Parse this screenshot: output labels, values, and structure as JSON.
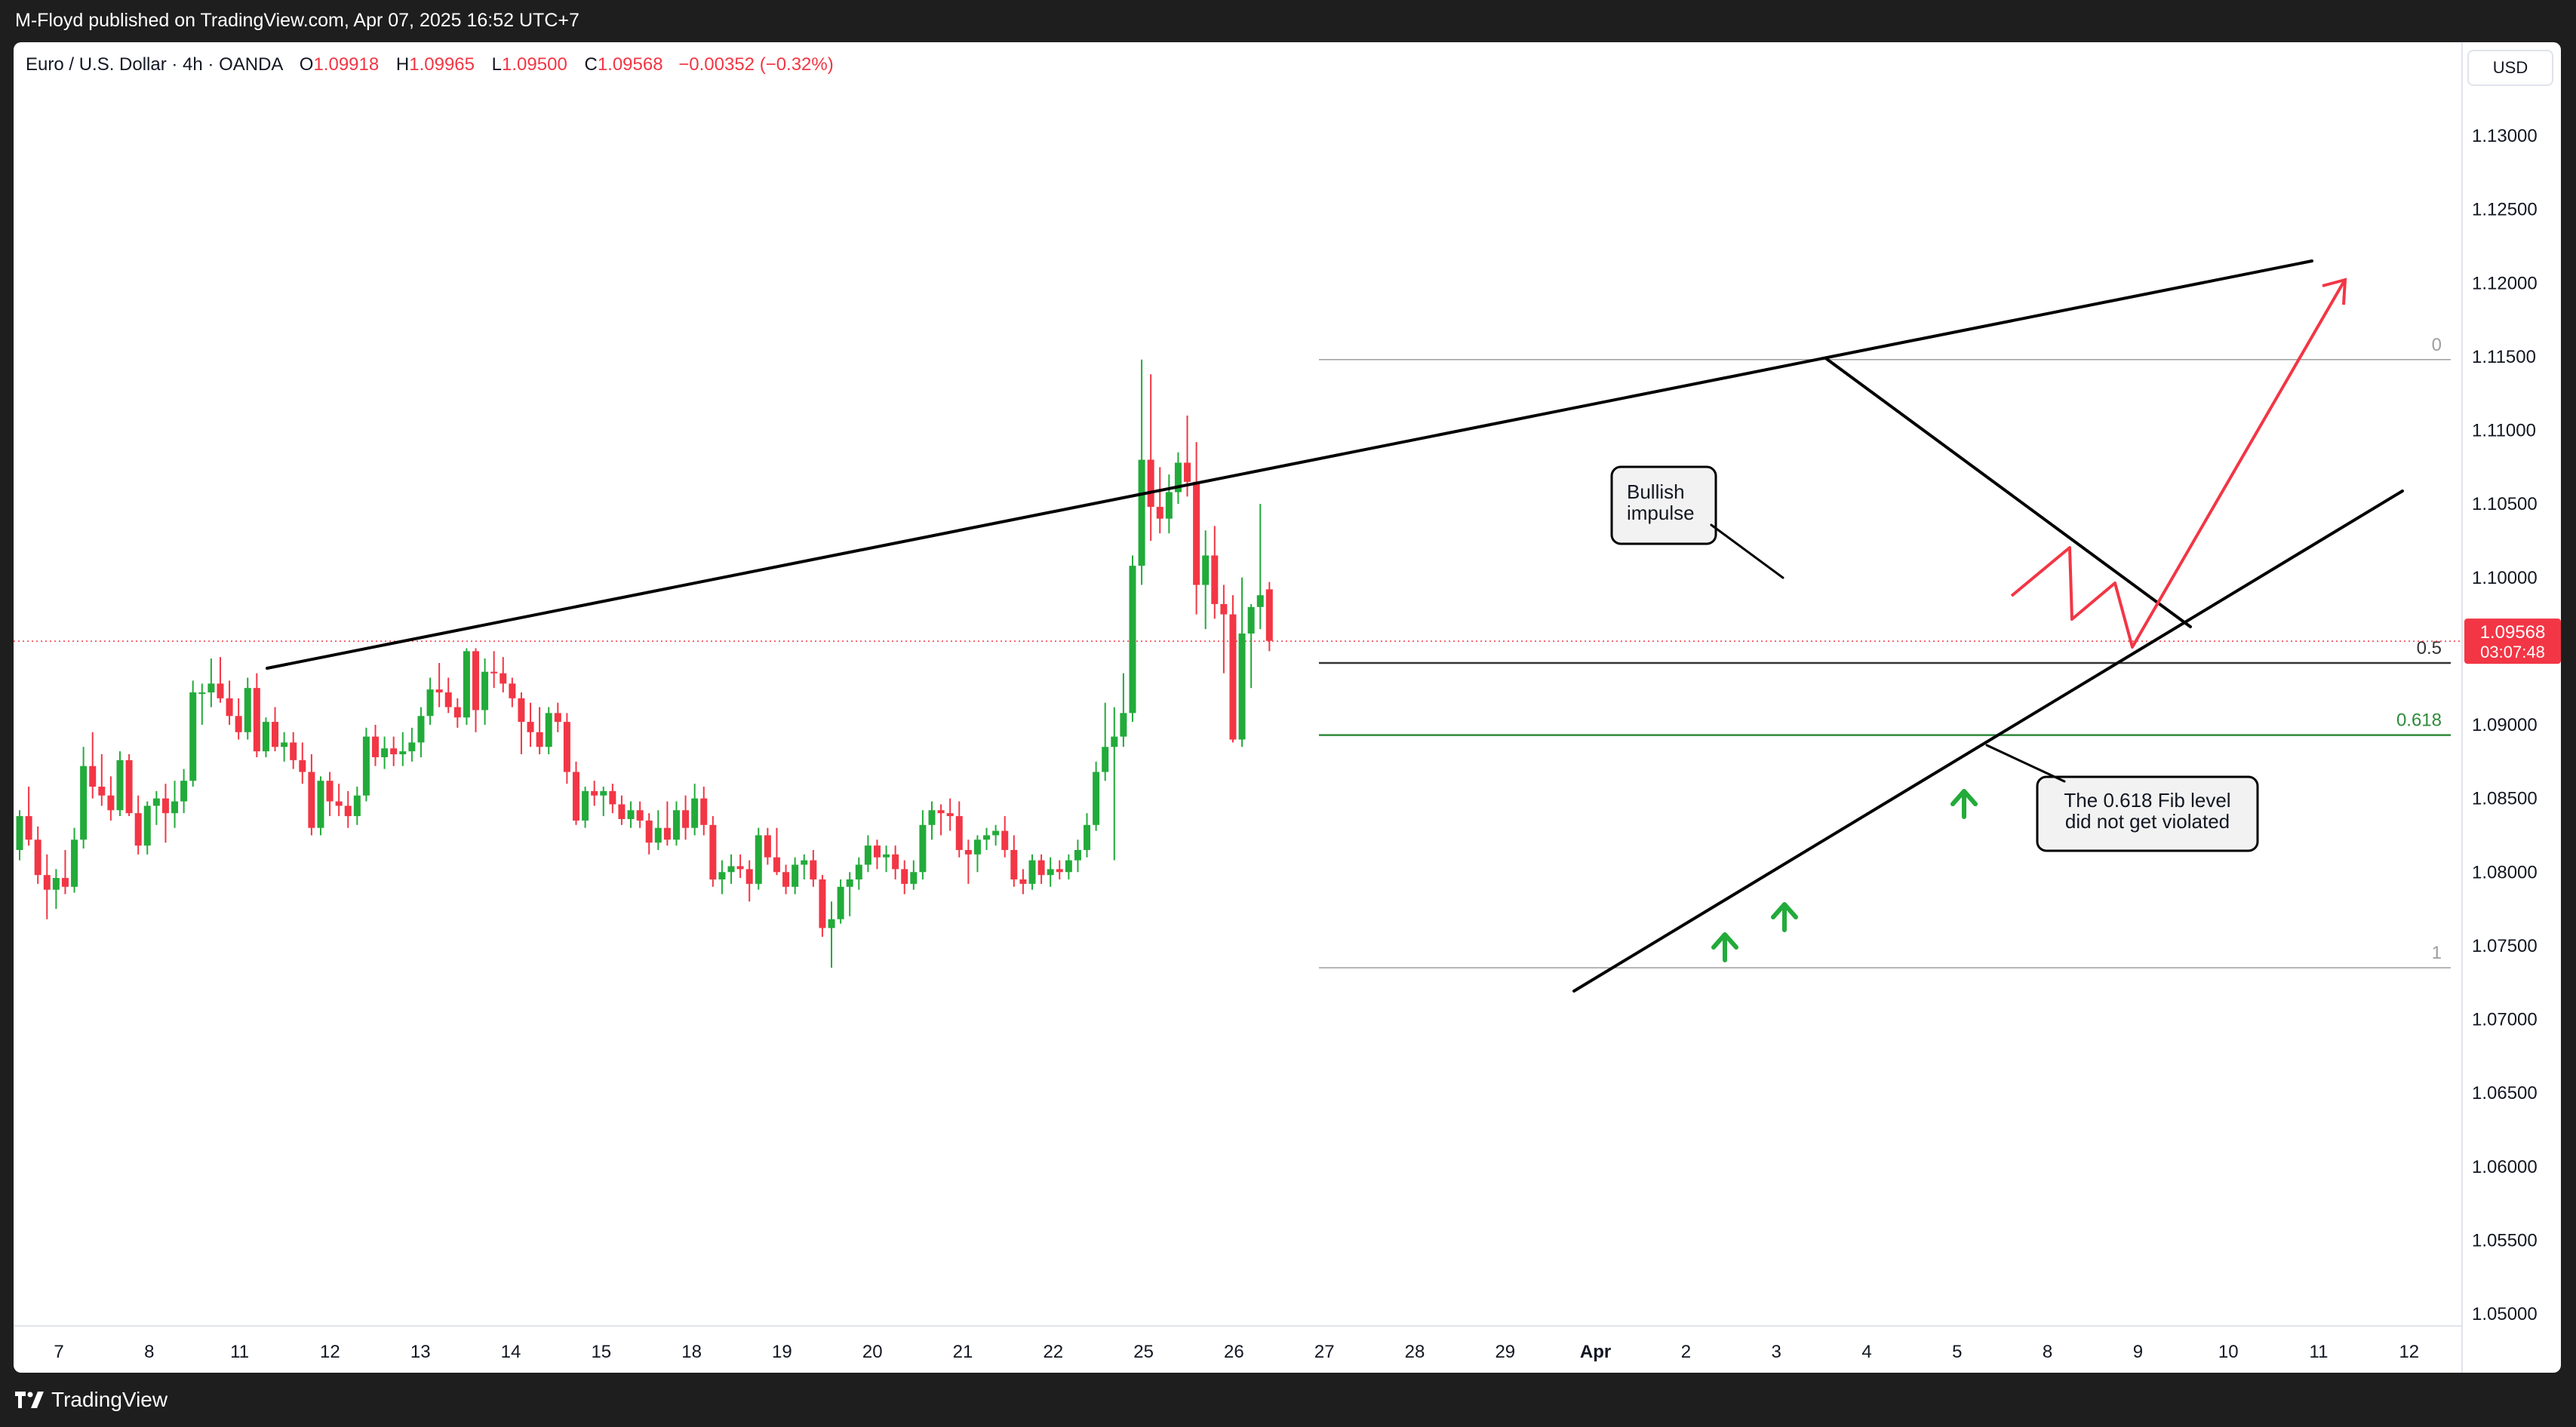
{
  "header": {
    "publisher_line": "M-Floyd published on TradingView.com, Apr 07, 2025 16:52 UTC+7"
  },
  "legend": {
    "symbol": "Euro / U.S. Dollar · 4h · OANDA",
    "open_label": "O",
    "open": "1.09918",
    "high_label": "H",
    "high": "1.09965",
    "low_label": "L",
    "low": "1.09500",
    "close_label": "C",
    "close": "1.09568",
    "change": "−0.00352 (−0.32%)"
  },
  "currency": "USD",
  "price_tag": {
    "price": "1.09568",
    "countdown": "03:07:48"
  },
  "footer": {
    "brand": "TradingView",
    "logo_icon": "tradingview-logo-icon"
  },
  "colors": {
    "up": "#22ab3a",
    "down": "#f23645",
    "fib_mid": "#333333",
    "fib_618": "#2e8b3a",
    "fib_edge": "#9e9e9e",
    "annot_arrow": "#22ab3a",
    "forecast": "#f23645"
  },
  "chart_data": {
    "type": "candlestick",
    "symbol": "EURUSD",
    "timeframe": "4h",
    "ylim": [
      1.046,
      1.135
    ],
    "y_ticks": [
      "1.13000",
      "1.12500",
      "1.12000",
      "1.11500",
      "1.11000",
      "1.10500",
      "1.10000",
      "1.09500",
      "1.09000",
      "1.08500",
      "1.08000",
      "1.07500",
      "1.07000",
      "1.06500",
      "1.06000",
      "1.05500",
      "1.05000"
    ],
    "x_ticks": [
      "7",
      "8",
      "11",
      "12",
      "13",
      "14",
      "15",
      "18",
      "19",
      "20",
      "21",
      "22",
      "25",
      "26",
      "27",
      "28",
      "29",
      "Apr",
      "2",
      "3",
      "4",
      "5",
      "8",
      "9",
      "10",
      "11",
      "12"
    ],
    "candles": [
      [
        1.0815,
        1.0842,
        1.0808,
        1.0838
      ],
      [
        1.0838,
        1.0858,
        1.0818,
        1.0822
      ],
      [
        1.0822,
        1.0831,
        1.0792,
        1.0798
      ],
      [
        1.0798,
        1.0812,
        1.0768,
        1.0788
      ],
      [
        1.0788,
        1.0802,
        1.0775,
        1.0796
      ],
      [
        1.0796,
        1.0815,
        1.0785,
        1.079
      ],
      [
        1.079,
        1.083,
        1.0786,
        1.0822
      ],
      [
        1.0822,
        1.0885,
        1.0816,
        1.0872
      ],
      [
        1.0872,
        1.0895,
        1.085,
        1.0858
      ],
      [
        1.0858,
        1.088,
        1.0845,
        1.0852
      ],
      [
        1.0852,
        1.0865,
        1.0835,
        1.0842
      ],
      [
        1.0842,
        1.0882,
        1.0838,
        1.0876
      ],
      [
        1.0876,
        1.088,
        1.0838,
        1.084
      ],
      [
        1.084,
        1.0852,
        1.0812,
        1.0818
      ],
      [
        1.0818,
        1.0848,
        1.0812,
        1.0845
      ],
      [
        1.0845,
        1.0855,
        1.0832,
        1.085
      ],
      [
        1.085,
        1.086,
        1.082,
        1.084
      ],
      [
        1.084,
        1.0862,
        1.083,
        1.0848
      ],
      [
        1.0848,
        1.087,
        1.084,
        1.0862
      ],
      [
        1.0862,
        1.093,
        1.0858,
        1.0922
      ],
      [
        1.0922,
        1.0928,
        1.09,
        1.0922
      ],
      [
        1.0922,
        1.0945,
        1.0912,
        1.0928
      ],
      [
        1.0928,
        1.0946,
        1.0915,
        1.0918
      ],
      [
        1.0918,
        1.093,
        1.09,
        1.0906
      ],
      [
        1.0906,
        1.0918,
        1.089,
        1.0895
      ],
      [
        1.0895,
        1.0932,
        1.089,
        1.0925
      ],
      [
        1.0925,
        1.0935,
        1.0878,
        1.0882
      ],
      [
        1.0882,
        1.0905,
        1.0878,
        1.0902
      ],
      [
        1.0902,
        1.0912,
        1.0882,
        1.0885
      ],
      [
        1.0885,
        1.0895,
        1.0875,
        1.0888
      ],
      [
        1.0888,
        1.0895,
        1.087,
        1.0876
      ],
      [
        1.0876,
        1.0888,
        1.086,
        1.0868
      ],
      [
        1.0868,
        1.088,
        1.0825,
        1.083
      ],
      [
        1.083,
        1.0865,
        1.0825,
        1.0862
      ],
      [
        1.0862,
        1.0868,
        1.0838,
        1.0848
      ],
      [
        1.0848,
        1.086,
        1.0838,
        1.0845
      ],
      [
        1.0845,
        1.0855,
        1.083,
        1.0838
      ],
      [
        1.0838,
        1.0858,
        1.0832,
        1.0852
      ],
      [
        1.0852,
        1.0898,
        1.0848,
        1.0892
      ],
      [
        1.0892,
        1.09,
        1.0872,
        1.0878
      ],
      [
        1.0878,
        1.0892,
        1.087,
        1.0884
      ],
      [
        1.0884,
        1.0892,
        1.0872,
        1.088
      ],
      [
        1.088,
        1.0895,
        1.0872,
        1.0882
      ],
      [
        1.0882,
        1.0898,
        1.0875,
        1.0888
      ],
      [
        1.0888,
        1.0912,
        1.0878,
        1.0906
      ],
      [
        1.0906,
        1.0932,
        1.09,
        1.0924
      ],
      [
        1.0924,
        1.0942,
        1.0912,
        1.0922
      ],
      [
        1.0922,
        1.0932,
        1.0908,
        1.0912
      ],
      [
        1.0912,
        1.0918,
        1.0898,
        1.0905
      ],
      [
        1.0905,
        1.0952,
        1.09,
        1.095
      ],
      [
        1.095,
        1.0952,
        1.0895,
        1.091
      ],
      [
        1.091,
        1.0945,
        1.09,
        1.0936
      ],
      [
        1.0936,
        1.095,
        1.0925,
        1.0935
      ],
      [
        1.0935,
        1.0946,
        1.0922,
        1.0928
      ],
      [
        1.0928,
        1.0932,
        1.0912,
        1.0918
      ],
      [
        1.0918,
        1.0922,
        1.088,
        1.0902
      ],
      [
        1.0902,
        1.0915,
        1.0885,
        1.0895
      ],
      [
        1.0895,
        1.0912,
        1.088,
        1.0885
      ],
      [
        1.0885,
        1.0912,
        1.088,
        1.0908
      ],
      [
        1.0908,
        1.0915,
        1.0895,
        1.0902
      ],
      [
        1.0902,
        1.0908,
        1.086,
        1.0868
      ],
      [
        1.0868,
        1.0875,
        1.0832,
        1.0835
      ],
      [
        1.0835,
        1.0858,
        1.083,
        1.0855
      ],
      [
        1.0855,
        1.0862,
        1.0845,
        1.0852
      ],
      [
        1.0852,
        1.0858,
        1.0838,
        1.0855
      ],
      [
        1.0855,
        1.086,
        1.084,
        1.0846
      ],
      [
        1.0846,
        1.0852,
        1.0832,
        1.0836
      ],
      [
        1.0836,
        1.0848,
        1.083,
        1.0842
      ],
      [
        1.0842,
        1.0848,
        1.083,
        1.0835
      ],
      [
        1.0835,
        1.084,
        1.0812,
        1.082
      ],
      [
        1.082,
        1.0842,
        1.0815,
        1.083
      ],
      [
        1.083,
        1.0848,
        1.0818,
        1.0822
      ],
      [
        1.0822,
        1.0848,
        1.0818,
        1.0842
      ],
      [
        1.0842,
        1.0852,
        1.0822,
        1.083
      ],
      [
        1.083,
        1.086,
        1.0825,
        1.085
      ],
      [
        1.085,
        1.0858,
        1.0825,
        1.0832
      ],
      [
        1.0832,
        1.0838,
        1.079,
        1.0795
      ],
      [
        1.0795,
        1.0808,
        1.0785,
        1.08
      ],
      [
        1.08,
        1.0812,
        1.0792,
        1.0804
      ],
      [
        1.0804,
        1.0812,
        1.0796,
        1.0802
      ],
      [
        1.0802,
        1.0808,
        1.078,
        1.0792
      ],
      [
        1.0792,
        1.083,
        1.0788,
        1.0825
      ],
      [
        1.0825,
        1.083,
        1.0805,
        1.081
      ],
      [
        1.081,
        1.083,
        1.0798,
        1.08
      ],
      [
        1.08,
        1.0805,
        1.0785,
        1.079
      ],
      [
        1.079,
        1.081,
        1.0785,
        1.0805
      ],
      [
        1.0805,
        1.0812,
        1.0795,
        1.0808
      ],
      [
        1.0808,
        1.0815,
        1.079,
        1.0795
      ],
      [
        1.0795,
        1.0798,
        1.0756,
        1.0762
      ],
      [
        1.0762,
        1.078,
        1.0735,
        1.0768
      ],
      [
        1.0768,
        1.0795,
        1.0765,
        1.079
      ],
      [
        1.079,
        1.08,
        1.077,
        1.0795
      ],
      [
        1.0795,
        1.081,
        1.0788,
        1.0805
      ],
      [
        1.0805,
        1.0825,
        1.08,
        1.0818
      ],
      [
        1.0818,
        1.0822,
        1.0802,
        1.081
      ],
      [
        1.081,
        1.0818,
        1.08,
        1.0812
      ],
      [
        1.0812,
        1.0818,
        1.0795,
        1.0802
      ],
      [
        1.0802,
        1.0808,
        1.0785,
        1.0792
      ],
      [
        1.0792,
        1.0808,
        1.0788,
        1.08
      ],
      [
        1.08,
        1.0842,
        1.0795,
        1.0832
      ],
      [
        1.0832,
        1.0848,
        1.0822,
        1.0842
      ],
      [
        1.0842,
        1.0846,
        1.0825,
        1.084
      ],
      [
        1.084,
        1.085,
        1.0828,
        1.0838
      ],
      [
        1.0838,
        1.0848,
        1.081,
        1.0815
      ],
      [
        1.0815,
        1.0822,
        1.0792,
        1.0812
      ],
      [
        1.0812,
        1.0825,
        1.08,
        1.0822
      ],
      [
        1.0822,
        1.083,
        1.0815,
        1.0825
      ],
      [
        1.0825,
        1.0832,
        1.0818,
        1.0828
      ],
      [
        1.0828,
        1.0838,
        1.081,
        1.0815
      ],
      [
        1.0815,
        1.0825,
        1.079,
        1.0795
      ],
      [
        1.0795,
        1.0802,
        1.0785,
        1.0792
      ],
      [
        1.0792,
        1.0812,
        1.0788,
        1.0808
      ],
      [
        1.0808,
        1.0812,
        1.0792,
        1.0798
      ],
      [
        1.0798,
        1.081,
        1.079,
        1.0802
      ],
      [
        1.0802,
        1.0808,
        1.0795,
        1.08
      ],
      [
        1.08,
        1.0812,
        1.0795,
        1.0808
      ],
      [
        1.0808,
        1.0822,
        1.08,
        1.0815
      ],
      [
        1.0815,
        1.084,
        1.081,
        1.0832
      ],
      [
        1.0832,
        1.0875,
        1.0828,
        1.0868
      ],
      [
        1.0868,
        1.0915,
        1.0862,
        1.0885
      ],
      [
        1.0885,
        1.0912,
        1.0808,
        1.0892
      ],
      [
        1.0892,
        1.0935,
        1.0885,
        1.0908
      ],
      [
        1.0908,
        1.1015,
        1.0902,
        1.1008
      ],
      [
        1.1008,
        1.1148,
        1.0995,
        1.108
      ],
      [
        1.108,
        1.1138,
        1.1025,
        1.1048
      ],
      [
        1.1048,
        1.1075,
        1.103,
        1.104
      ],
      [
        1.104,
        1.107,
        1.103,
        1.1058
      ],
      [
        1.1058,
        1.1085,
        1.105,
        1.1078
      ],
      [
        1.1078,
        1.111,
        1.1055,
        1.1065
      ],
      [
        1.1065,
        1.1092,
        1.0975,
        1.0995
      ],
      [
        1.0995,
        1.1032,
        1.0965,
        1.1015
      ],
      [
        1.1015,
        1.1035,
        1.0972,
        1.0982
      ],
      [
        1.0982,
        1.0995,
        1.0935,
        1.0975
      ],
      [
        1.0975,
        1.0988,
        1.0888,
        1.089
      ],
      [
        1.089,
        1.1,
        1.0885,
        1.0962
      ],
      [
        1.0962,
        1.0982,
        1.0925,
        1.098
      ],
      [
        1.098,
        1.105,
        1.0965,
        1.0988
      ],
      [
        1.0992,
        1.0997,
        1.095,
        1.0957
      ]
    ],
    "levels": [
      {
        "label": "0",
        "value": 1.1148
      },
      {
        "label": "0.5",
        "value": 1.0942
      },
      {
        "label": "0.618",
        "value": 1.0893
      },
      {
        "label": "1",
        "value": 1.0735
      }
    ],
    "current_price": 1.09568,
    "annotations": [
      {
        "text": [
          "Bullish",
          "impulse"
        ]
      },
      {
        "text": [
          "The 0.618 Fib level",
          "did not get violated"
        ]
      }
    ],
    "grid": false
  }
}
